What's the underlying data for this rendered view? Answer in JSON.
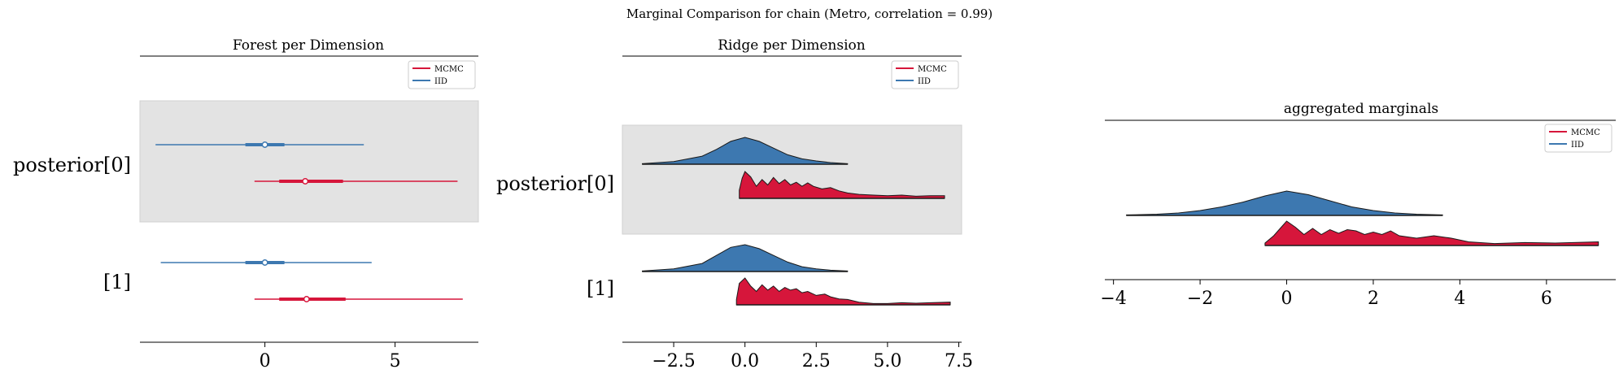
{
  "figure": {
    "suptitle": "Marginal Comparison for chain (Metro, correlation = 0.99)"
  },
  "colors": {
    "mcmc": "#d6163b",
    "iid": "#3d78b0",
    "band": "#e3e3e3"
  },
  "legend": {
    "mcmc": "MCMC",
    "iid": "IID"
  },
  "chart_data": [
    {
      "type": "forest",
      "title": "Forest per Dimension",
      "row_labels": [
        "posterior[0]",
        "[1]"
      ],
      "xlim": [
        -4.8,
        8.2
      ],
      "xticks": [
        0,
        5
      ],
      "xtick_labels": [
        "0",
        "5"
      ],
      "legend_position": "top-right",
      "series": [
        {
          "name": "MCMC",
          "rows": [
            {
              "min": -0.4,
              "q25": 0.55,
              "median": 1.55,
              "q75": 3.0,
              "max": 7.4
            },
            {
              "min": -0.4,
              "q25": 0.55,
              "median": 1.6,
              "q75": 3.1,
              "max": 7.6
            }
          ]
        },
        {
          "name": "IID",
          "rows": [
            {
              "min": -4.2,
              "q25": -0.75,
              "median": 0.0,
              "q75": 0.75,
              "max": 3.8
            },
            {
              "min": -4.0,
              "q25": -0.75,
              "median": 0.0,
              "q75": 0.75,
              "max": 4.1
            }
          ]
        }
      ]
    },
    {
      "type": "ridge",
      "title": "Ridge per Dimension",
      "row_labels": [
        "posterior[0]",
        "[1]"
      ],
      "xlim": [
        -4.3,
        7.6
      ],
      "xticks": [
        -2.5,
        0.0,
        2.5,
        5.0,
        7.5
      ],
      "xtick_labels": [
        "−2.5",
        "0.0",
        "2.5",
        "5.0",
        "7.5"
      ],
      "legend_position": "top-right",
      "series": [
        {
          "name": "IID",
          "rows": [
            {
              "x": [
                -3.6,
                -2.5,
                -1.5,
                -1.0,
                -0.5,
                0.0,
                0.5,
                1.0,
                1.5,
                2.0,
                2.5,
                3.0,
                3.6
              ],
              "y": [
                0.02,
                0.1,
                0.3,
                0.55,
                0.85,
                1.0,
                0.85,
                0.6,
                0.35,
                0.2,
                0.12,
                0.06,
                0.02
              ]
            },
            {
              "x": [
                -3.6,
                -2.5,
                -1.5,
                -1.0,
                -0.5,
                0.0,
                0.5,
                1.0,
                1.5,
                2.0,
                2.5,
                3.0,
                3.6
              ],
              "y": [
                0.02,
                0.1,
                0.3,
                0.6,
                0.9,
                1.0,
                0.85,
                0.6,
                0.35,
                0.18,
                0.1,
                0.05,
                0.02
              ]
            }
          ]
        },
        {
          "name": "MCMC",
          "rows": [
            {
              "x": [
                -0.2,
                -0.1,
                0.0,
                0.2,
                0.4,
                0.6,
                0.8,
                1.0,
                1.2,
                1.4,
                1.6,
                1.8,
                2.0,
                2.2,
                2.4,
                2.7,
                3.0,
                3.3,
                3.6,
                4.0,
                4.5,
                5.0,
                5.5,
                6.0,
                6.5,
                7.0
              ],
              "y": [
                0.3,
                0.75,
                1.0,
                0.8,
                0.45,
                0.7,
                0.5,
                0.78,
                0.55,
                0.7,
                0.5,
                0.6,
                0.45,
                0.58,
                0.45,
                0.35,
                0.4,
                0.28,
                0.2,
                0.15,
                0.12,
                0.1,
                0.12,
                0.08,
                0.1,
                0.1
              ]
            },
            {
              "x": [
                -0.3,
                -0.2,
                0.0,
                0.2,
                0.4,
                0.6,
                0.8,
                1.0,
                1.2,
                1.4,
                1.6,
                1.8,
                2.0,
                2.2,
                2.5,
                2.8,
                3.0,
                3.3,
                3.6,
                4.0,
                4.5,
                5.0,
                5.5,
                6.0,
                6.5,
                7.2
              ],
              "y": [
                0.2,
                0.8,
                1.0,
                0.7,
                0.5,
                0.75,
                0.55,
                0.7,
                0.5,
                0.65,
                0.55,
                0.6,
                0.45,
                0.5,
                0.35,
                0.4,
                0.3,
                0.22,
                0.2,
                0.1,
                0.05,
                0.05,
                0.08,
                0.06,
                0.08,
                0.1
              ]
            }
          ]
        }
      ]
    },
    {
      "type": "ridge",
      "title": "aggregated marginals",
      "xlim": [
        -4.2,
        7.6
      ],
      "xticks": [
        -4,
        -2,
        0,
        2,
        4,
        6
      ],
      "xtick_labels": [
        "−4",
        "−2",
        "0",
        "2",
        "4",
        "6"
      ],
      "legend_position": "top-right",
      "series": [
        {
          "name": "IID",
          "x": [
            -3.7,
            -3.0,
            -2.5,
            -2.0,
            -1.5,
            -1.0,
            -0.5,
            0.0,
            0.5,
            1.0,
            1.5,
            2.0,
            2.5,
            3.0,
            3.6
          ],
          "y": [
            0.02,
            0.05,
            0.1,
            0.2,
            0.35,
            0.55,
            0.8,
            1.0,
            0.85,
            0.6,
            0.35,
            0.2,
            0.1,
            0.05,
            0.02
          ]
        },
        {
          "name": "MCMC",
          "x": [
            -0.5,
            -0.3,
            -0.1,
            0.0,
            0.2,
            0.4,
            0.6,
            0.8,
            1.0,
            1.2,
            1.4,
            1.6,
            1.8,
            2.0,
            2.2,
            2.4,
            2.6,
            2.8,
            3.0,
            3.4,
            3.8,
            4.2,
            4.8,
            5.5,
            6.2,
            7.2
          ],
          "y": [
            0.1,
            0.4,
            0.8,
            1.0,
            0.75,
            0.45,
            0.7,
            0.45,
            0.65,
            0.5,
            0.65,
            0.6,
            0.45,
            0.55,
            0.45,
            0.6,
            0.4,
            0.35,
            0.3,
            0.4,
            0.3,
            0.15,
            0.08,
            0.12,
            0.1,
            0.15
          ]
        }
      ]
    }
  ]
}
